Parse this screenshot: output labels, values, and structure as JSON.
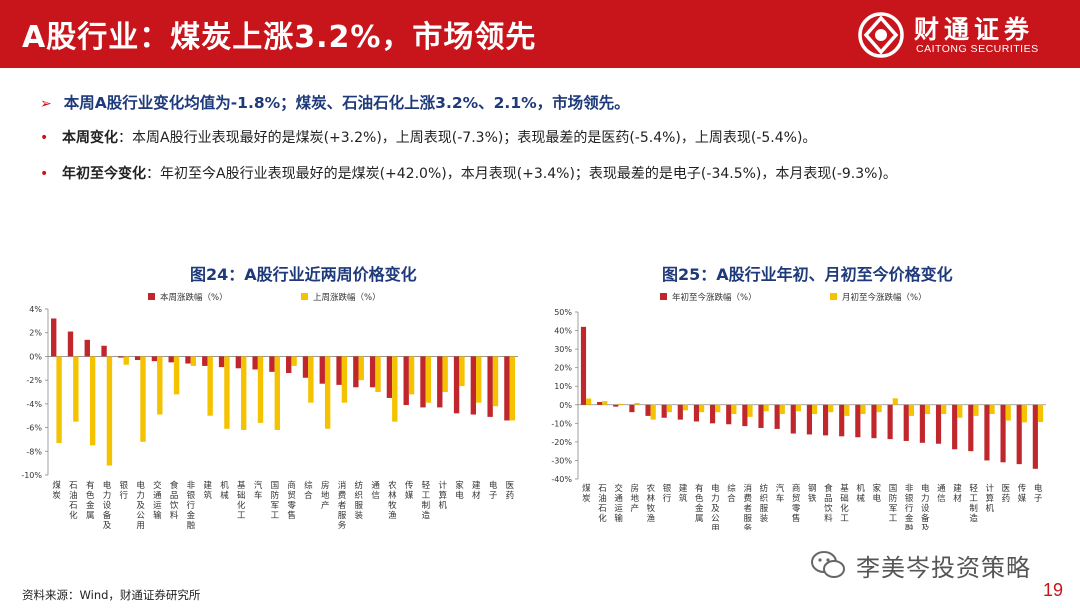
{
  "header": {
    "title": "A股行业：煤炭上涨3.2%，市场领先",
    "logo_cn": "财通证券",
    "logo_en": "CAITONG SECURITIES"
  },
  "summary": {
    "arrow": "➢",
    "text": "本周A股行业变化均值为-1.8%；煤炭、石油石化上涨3.2%、2.1%，市场领先。"
  },
  "bullets": [
    {
      "dot": "•",
      "key": "本周变化",
      "text": "：本周A股行业表现最好的是煤炭(+3.2%)，上周表现(-7.3%)；表现最差的是医药(-5.4%)，上周表现(-5.4%)。"
    },
    {
      "dot": "•",
      "key": "年初至今变化",
      "text": "：年初至今A股行业表现最好的是煤炭(+42.0%)，本月表现(+3.4%)；表现最差的是电子(-34.5%)，本月表现(-9.3%)。"
    }
  ],
  "footer": {
    "source": "资料来源：Wind，财通证券研究所",
    "watermark": "李美岑投资策略",
    "page": "19"
  },
  "colors": {
    "red": "#c0272d",
    "yellow": "#f5c200",
    "brand": "#c8141b",
    "navy": "#1f3a7a"
  },
  "chart_data": [
    {
      "type": "bar",
      "title": "图24：A股行业近两周价格变化",
      "categories": [
        "煤炭",
        "石油石化",
        "有色金属",
        "电力设备及新能源",
        "银行",
        "电力及公用事业",
        "交通运输",
        "食品饮料",
        "非银行金融",
        "建筑",
        "机械",
        "基础化工",
        "汽车",
        "国防军工",
        "商贸零售",
        "综合",
        "房地产",
        "消费者服务",
        "纺织服装",
        "通信",
        "农林牧渔",
        "传媒",
        "轻工制造",
        "计算机",
        "家电",
        "建材",
        "电子",
        "医药"
      ],
      "series": [
        {
          "name": "本周涨跌幅（%）",
          "color": "#c0272d",
          "values": [
            3.2,
            2.1,
            1.4,
            0.9,
            -0.1,
            -0.3,
            -0.4,
            -0.5,
            -0.6,
            -0.8,
            -0.9,
            -1.0,
            -1.1,
            -1.3,
            -1.4,
            -1.8,
            -2.3,
            -2.4,
            -2.6,
            -2.6,
            -3.5,
            -4.1,
            -4.3,
            -4.3,
            -4.8,
            -4.9,
            -5.1,
            -5.4
          ]
        },
        {
          "name": "上周涨跌幅（%）",
          "color": "#f5c200",
          "values": [
            -7.3,
            -5.5,
            -7.5,
            -9.2,
            -0.7,
            -7.2,
            -4.9,
            -3.2,
            -0.8,
            -5.0,
            -6.1,
            -6.2,
            -5.6,
            -6.2,
            -0.8,
            -3.9,
            -6.1,
            -3.9,
            -2.0,
            -3.0,
            -5.5,
            -3.2,
            -3.9,
            -3.0,
            -2.5,
            -3.9,
            -4.2,
            -5.4
          ]
        }
      ],
      "ylim": [
        -10,
        4
      ],
      "yticks": [
        4,
        2,
        0,
        -2,
        -4,
        -6,
        -8,
        -10
      ],
      "ytick_labels": [
        "4%",
        "2%",
        "0%",
        "-2%",
        "-4%",
        "-6%",
        "-8%",
        "-10%"
      ],
      "legend_position": "top"
    },
    {
      "type": "bar",
      "title": "图25：A股行业年初、月初至今价格变化",
      "categories": [
        "煤炭",
        "石油石化",
        "交通运输",
        "房地产",
        "农林牧渔",
        "银行",
        "建筑",
        "有色金属",
        "电力及公用事业",
        "综合",
        "消费者服务",
        "纺织服装",
        "汽车",
        "商贸零售",
        "钢铁",
        "食品饮料",
        "基础化工",
        "机械",
        "家电",
        "国防军工",
        "非银行金融",
        "电力设备及新能源",
        "通信",
        "建材",
        "轻工制造",
        "计算机",
        "医药",
        "传媒",
        "电子"
      ],
      "series": [
        {
          "name": "年初至今涨跌幅（%）",
          "color": "#c0272d",
          "values": [
            42.0,
            1.5,
            -1.0,
            -4.0,
            -6.0,
            -7.0,
            -8.0,
            -9.0,
            -10.0,
            -10.5,
            -11.5,
            -12.5,
            -13.0,
            -15.5,
            -16.0,
            -16.5,
            -17.0,
            -17.5,
            -18.0,
            -18.5,
            -19.5,
            -20.5,
            -21.0,
            -24.0,
            -25.0,
            -30.0,
            -31.0,
            -32.0,
            -34.5
          ]
        },
        {
          "name": "月初至今涨跌幅（%）",
          "color": "#f5c200",
          "values": [
            3.4,
            2.0,
            0.5,
            1.0,
            -8.0,
            -4.0,
            -3.0,
            -4.0,
            -4.0,
            -5.0,
            -6.5,
            -3.5,
            -5.0,
            -3.5,
            -5.0,
            -4.0,
            -6.0,
            -5.0,
            -4.0,
            3.5,
            -6.0,
            -5.0,
            -5.0,
            -7.0,
            -6.0,
            -5.0,
            -8.5,
            -9.5,
            -9.3
          ]
        }
      ],
      "ylim": [
        -40,
        50
      ],
      "yticks": [
        50,
        40,
        30,
        20,
        10,
        0,
        -10,
        -20,
        -30,
        -40
      ],
      "ytick_labels": [
        "50%",
        "40%",
        "30%",
        "20%",
        "10%",
        "0%",
        "-10%",
        "-20%",
        "-30%",
        "-40%"
      ],
      "legend_position": "top"
    }
  ]
}
